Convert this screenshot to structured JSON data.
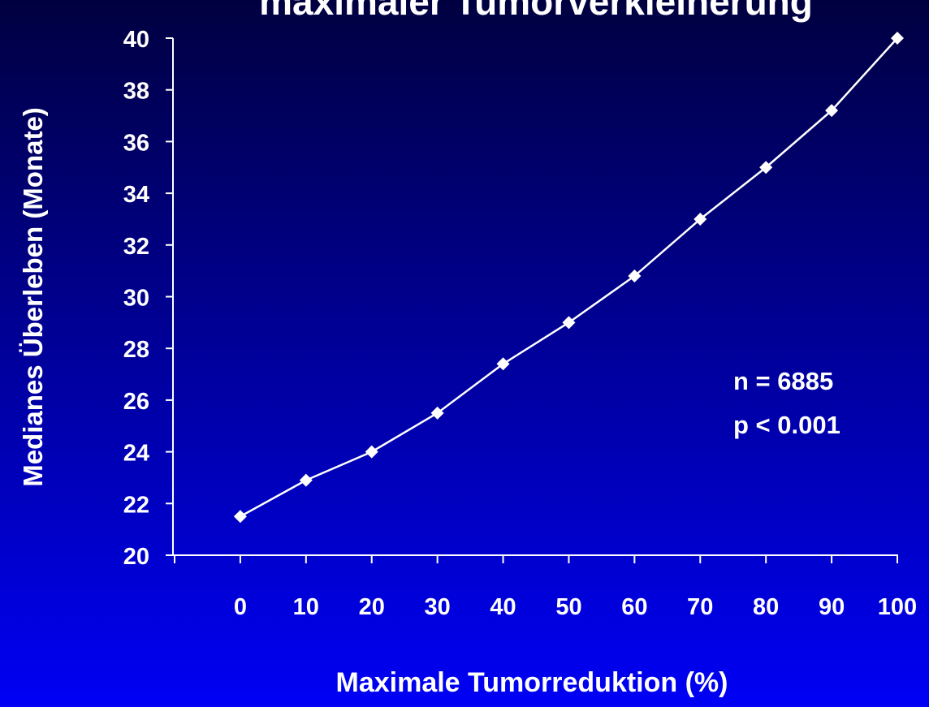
{
  "chart_data": {
    "type": "line",
    "title": "maximaler Tumorverkleinerung",
    "x_label": "Maximale Tumorreduktion (%)",
    "y_label": "Medianes Überleben (Monate)",
    "x": [
      0,
      10,
      20,
      30,
      40,
      50,
      60,
      70,
      80,
      90,
      100
    ],
    "series": [
      {
        "color": "#ffffff",
        "values": [
          21.5,
          22.9,
          24.0,
          25.5,
          27.4,
          29.0,
          30.8,
          33.0,
          35.0,
          37.2,
          40.0
        ]
      }
    ],
    "xlim": [
      -10,
      100
    ],
    "xticks": [
      0,
      10,
      20,
      30,
      40,
      50,
      60,
      70,
      80,
      90,
      100
    ],
    "ylim": [
      20,
      40
    ],
    "yticks": [
      20,
      22,
      24,
      26,
      28,
      30,
      32,
      34,
      36,
      38,
      40
    ],
    "annotations": [
      "n = 6885",
      "p < 0.001"
    ]
  }
}
